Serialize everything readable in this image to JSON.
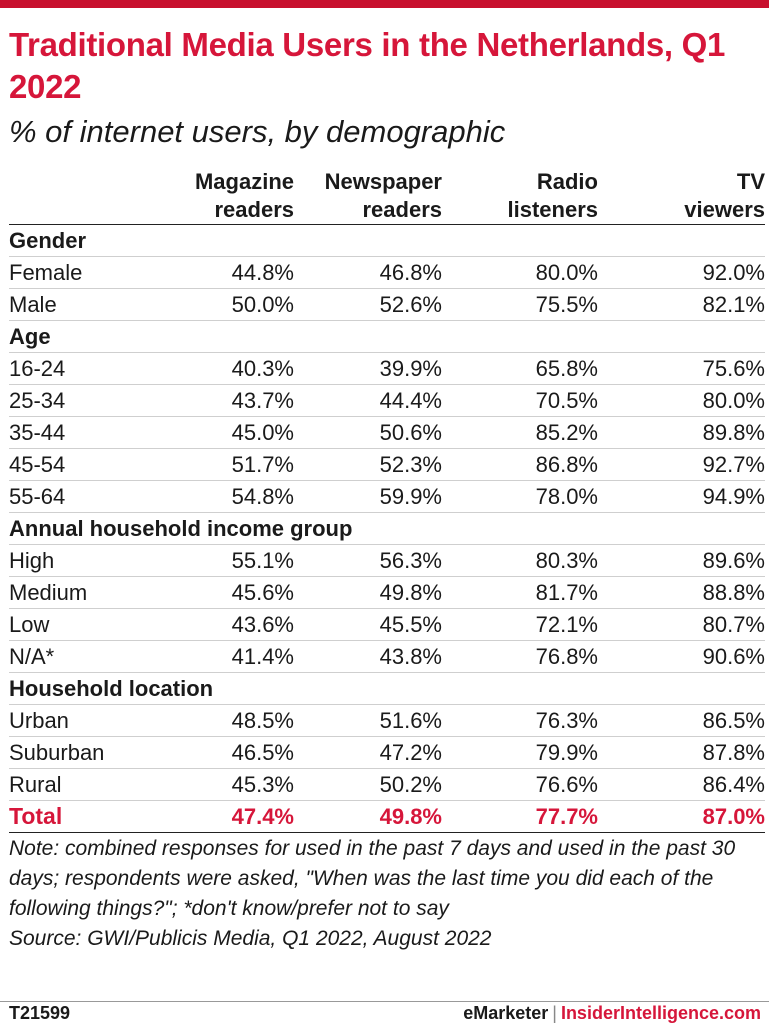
{
  "header": {
    "title": "Traditional Media Users in the Netherlands, Q1 2022",
    "subtitle": "% of internet users, by demographic"
  },
  "chart_data": {
    "type": "table",
    "columns": [
      {
        "line1": "Magazine",
        "line2": "readers"
      },
      {
        "line1": "Newspaper",
        "line2": "readers"
      },
      {
        "line1": "Radio",
        "line2": "listeners"
      },
      {
        "line1": "TV",
        "line2": "viewers"
      }
    ],
    "groups": [
      {
        "label": "Gender",
        "rows": [
          {
            "label": "Female",
            "values": [
              "44.8%",
              "46.8%",
              "80.0%",
              "92.0%"
            ]
          },
          {
            "label": "Male",
            "values": [
              "50.0%",
              "52.6%",
              "75.5%",
              "82.1%"
            ]
          }
        ]
      },
      {
        "label": "Age",
        "rows": [
          {
            "label": "16-24",
            "values": [
              "40.3%",
              "39.9%",
              "65.8%",
              "75.6%"
            ]
          },
          {
            "label": "25-34",
            "values": [
              "43.7%",
              "44.4%",
              "70.5%",
              "80.0%"
            ]
          },
          {
            "label": "35-44",
            "values": [
              "45.0%",
              "50.6%",
              "85.2%",
              "89.8%"
            ]
          },
          {
            "label": "45-54",
            "values": [
              "51.7%",
              "52.3%",
              "86.8%",
              "92.7%"
            ]
          },
          {
            "label": "55-64",
            "values": [
              "54.8%",
              "59.9%",
              "78.0%",
              "94.9%"
            ]
          }
        ]
      },
      {
        "label": "Annual household income group",
        "rows": [
          {
            "label": "High",
            "values": [
              "55.1%",
              "56.3%",
              "80.3%",
              "89.6%"
            ]
          },
          {
            "label": "Medium",
            "values": [
              "45.6%",
              "49.8%",
              "81.7%",
              "88.8%"
            ]
          },
          {
            "label": "Low",
            "values": [
              "43.6%",
              "45.5%",
              "72.1%",
              "80.7%"
            ]
          },
          {
            "label": "N/A*",
            "values": [
              "41.4%",
              "43.8%",
              "76.8%",
              "90.6%"
            ]
          }
        ]
      },
      {
        "label": "Household location",
        "rows": [
          {
            "label": "Urban",
            "values": [
              "48.5%",
              "51.6%",
              "76.3%",
              "86.5%"
            ]
          },
          {
            "label": "Suburban",
            "values": [
              "46.5%",
              "47.2%",
              "79.9%",
              "87.8%"
            ]
          },
          {
            "label": "Rural",
            "values": [
              "45.3%",
              "50.2%",
              "76.6%",
              "86.4%"
            ]
          }
        ]
      }
    ],
    "total": {
      "label": "Total",
      "values": [
        "47.4%",
        "49.8%",
        "77.7%",
        "87.0%"
      ]
    }
  },
  "notes": {
    "note": "Note: combined responses for used in the past 7 days and used in the past 30 days; respondents were asked, \"When was the last time you did each of the following things?\"; *don't know/prefer not to say",
    "source": "Source: GWI/Publicis Media, Q1 2022, August 2022"
  },
  "footer": {
    "id": "T21599",
    "brand": "eMarketer",
    "separator": "|",
    "brand2": "InsiderIntelligence.com"
  },
  "colors": {
    "accent": "#d6163a",
    "topbar": "#c8102e",
    "text": "#1a1a1a"
  }
}
